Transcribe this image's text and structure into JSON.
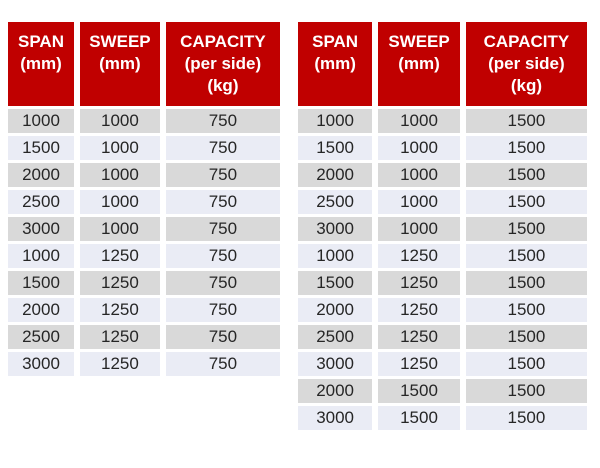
{
  "colors": {
    "page_bg": "#FFFFFF",
    "header_bg": "#C00000",
    "header_text": "#FFFFFF",
    "row_odd": "#D9D9D9",
    "row_even": "#EAECF5",
    "cell_text": "#262626",
    "border": "#FFFFFF"
  },
  "tables": [
    {
      "name": "capacity-750-per-side",
      "headers": [
        "SPAN\n(mm)",
        "SWEEP\n(mm)",
        "CAPACITY\n(per side)\n(kg)"
      ],
      "rows": [
        [
          "1000",
          "1000",
          "750"
        ],
        [
          "1500",
          "1000",
          "750"
        ],
        [
          "2000",
          "1000",
          "750"
        ],
        [
          "2500",
          "1000",
          "750"
        ],
        [
          "3000",
          "1000",
          "750"
        ],
        [
          "1000",
          "1250",
          "750"
        ],
        [
          "1500",
          "1250",
          "750"
        ],
        [
          "2000",
          "1250",
          "750"
        ],
        [
          "2500",
          "1250",
          "750"
        ],
        [
          "3000",
          "1250",
          "750"
        ]
      ]
    },
    {
      "name": "capacity-1500-per-side",
      "headers": [
        "SPAN\n(mm)",
        "SWEEP\n(mm)",
        "CAPACITY\n(per side)\n(kg)"
      ],
      "rows": [
        [
          "1000",
          "1000",
          "1500"
        ],
        [
          "1500",
          "1000",
          "1500"
        ],
        [
          "2000",
          "1000",
          "1500"
        ],
        [
          "2500",
          "1000",
          "1500"
        ],
        [
          "3000",
          "1000",
          "1500"
        ],
        [
          "1000",
          "1250",
          "1500"
        ],
        [
          "1500",
          "1250",
          "1500"
        ],
        [
          "2000",
          "1250",
          "1500"
        ],
        [
          "2500",
          "1250",
          "1500"
        ],
        [
          "3000",
          "1250",
          "1500"
        ],
        [
          "2000",
          "1500",
          "1500"
        ],
        [
          "3000",
          "1500",
          "1500"
        ]
      ]
    }
  ]
}
